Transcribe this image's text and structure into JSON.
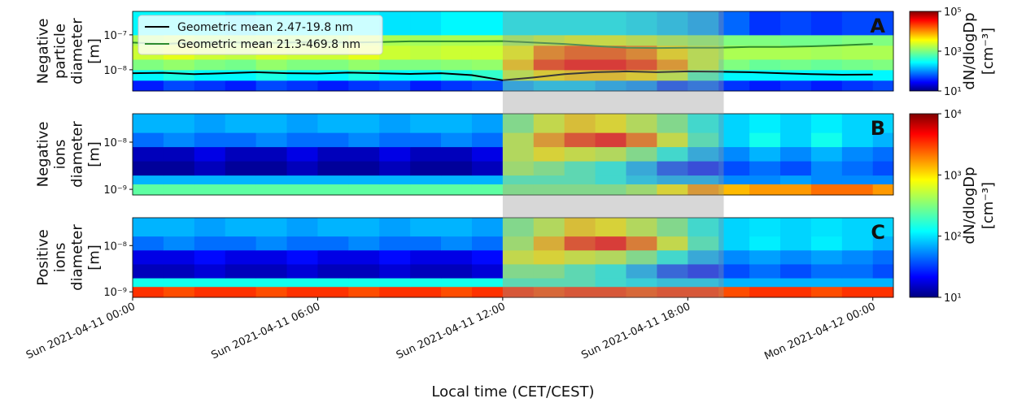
{
  "shaded_span": [
    "2021-04-11 12:00",
    "2021-04-11 19:10"
  ],
  "chart_data": [
    {
      "type": "heatmap",
      "panel_label": "A",
      "ylabel": [
        "Negative",
        "particle",
        "diameter",
        "[m]"
      ],
      "ylog": true,
      "ylim": [
        2.47e-09,
        4.698e-07
      ],
      "yticks": [
        {
          "value": 1e-08,
          "label": "10⁻⁸"
        },
        {
          "value": 1e-07,
          "label": "10⁻⁷"
        }
      ],
      "xlim": [
        "2021-04-11 00:00",
        "2021-04-12 00:40"
      ],
      "x": [
        "2021-04-11 00:00",
        "2021-04-11 01:00",
        "2021-04-11 02:00",
        "2021-04-11 03:00",
        "2021-04-11 04:00",
        "2021-04-11 05:00",
        "2021-04-11 06:00",
        "2021-04-11 07:00",
        "2021-04-11 08:00",
        "2021-04-11 09:00",
        "2021-04-11 10:00",
        "2021-04-11 11:00",
        "2021-04-11 12:00",
        "2021-04-11 13:00",
        "2021-04-11 14:00",
        "2021-04-11 15:00",
        "2021-04-11 16:00",
        "2021-04-11 17:00",
        "2021-04-11 18:00",
        "2021-04-11 19:00",
        "2021-04-11 20:00",
        "2021-04-11 21:00",
        "2021-04-11 22:00",
        "2021-04-11 23:00",
        "2021-04-12 00:00"
      ],
      "y_bins": [
        2.47e-09,
        5e-09,
        1e-08,
        2e-08,
        5e-08,
        1e-07,
        4.698e-07
      ],
      "z": [
        [
          40,
          60,
          50,
          40,
          60,
          50,
          40,
          50,
          60,
          40,
          50,
          60,
          150,
          200,
          200,
          150,
          120,
          60,
          80,
          50,
          40,
          50,
          40,
          50,
          60
        ],
        [
          300,
          400,
          300,
          300,
          400,
          300,
          300,
          400,
          300,
          300,
          400,
          500,
          2000,
          4000,
          5000,
          5000,
          4000,
          2000,
          600,
          300,
          300,
          300,
          300,
          300,
          300
        ],
        [
          1000,
          1200,
          1000,
          900,
          1200,
          1000,
          1000,
          1200,
          1000,
          1000,
          1100,
          1200,
          5000,
          20000,
          30000,
          30000,
          20000,
          8000,
          2000,
          1000,
          800,
          900,
          800,
          900,
          1000
        ],
        [
          2000,
          2500,
          2000,
          1800,
          2200,
          2000,
          2000,
          2500,
          2000,
          1800,
          2000,
          2000,
          3000,
          10000,
          15000,
          15000,
          10000,
          4000,
          2000,
          1500,
          1500,
          1500,
          1400,
          1500,
          1500
        ],
        [
          1500,
          1800,
          1500,
          1500,
          1600,
          1500,
          1500,
          2000,
          1500,
          1400,
          1500,
          1500,
          1500,
          2000,
          2500,
          2500,
          2000,
          1500,
          1200,
          1000,
          1000,
          900,
          900,
          1000,
          1000
        ],
        [
          300,
          300,
          300,
          250,
          300,
          300,
          300,
          300,
          250,
          250,
          300,
          300,
          300,
          300,
          300,
          300,
          250,
          200,
          150,
          80,
          50,
          60,
          50,
          60,
          60
        ]
      ],
      "series": [
        {
          "name": "Geometric mean 2.47-19.8 nm",
          "color": "#000000",
          "values": [
            8e-09,
            8.2e-09,
            7.5e-09,
            8e-09,
            8.5e-09,
            8e-09,
            7.8e-09,
            8.3e-09,
            8e-09,
            7.6e-09,
            8e-09,
            7e-09,
            5e-09,
            6e-09,
            7.5e-09,
            8.5e-09,
            9e-09,
            8.5e-09,
            9e-09,
            8.8e-09,
            8.5e-09,
            8e-09,
            7.5e-09,
            7.2e-09,
            7.3e-09
          ]
        },
        {
          "name": "Geometric mean 21.3-469.8 nm",
          "color": "#2e8b2e",
          "values": [
            6e-08,
            5.5e-08,
            6e-08,
            6.2e-08,
            5.8e-08,
            6e-08,
            6.3e-08,
            6e-08,
            6.2e-08,
            6.5e-08,
            6.5e-08,
            6.5e-08,
            6.6e-08,
            6e-08,
            5.5e-08,
            4.8e-08,
            4.3e-08,
            4.2e-08,
            4.3e-08,
            4.3e-08,
            4.5e-08,
            4.5e-08,
            4.7e-08,
            5e-08,
            5.5e-08
          ]
        }
      ],
      "legend": "upper left",
      "colorbar": {
        "label": "dN/dlogDp",
        "unit": "[cm⁻³]",
        "log": true,
        "colormap": "jet",
        "lim": [
          10,
          100000
        ],
        "ticks": [
          {
            "value": 10,
            "label": "10¹"
          },
          {
            "value": 1000,
            "label": "10³"
          },
          {
            "value": 100000,
            "label": "10⁵"
          }
        ]
      }
    },
    {
      "type": "heatmap",
      "panel_label": "B",
      "ylabel": [
        "Negative",
        "ions",
        "diameter",
        "[m]"
      ],
      "ylog": true,
      "ylim": [
        7.6e-10,
        4e-08
      ],
      "yticks": [
        {
          "value": 1e-09,
          "label": "10⁻⁹"
        },
        {
          "value": 1e-08,
          "label": "10⁻⁸"
        }
      ],
      "xlim": [
        "2021-04-11 00:00",
        "2021-04-12 00:40"
      ],
      "x": [
        "2021-04-11 00:00",
        "2021-04-11 01:00",
        "2021-04-11 02:00",
        "2021-04-11 03:00",
        "2021-04-11 04:00",
        "2021-04-11 05:00",
        "2021-04-11 06:00",
        "2021-04-11 07:00",
        "2021-04-11 08:00",
        "2021-04-11 09:00",
        "2021-04-11 10:00",
        "2021-04-11 11:00",
        "2021-04-11 12:00",
        "2021-04-11 13:00",
        "2021-04-11 14:00",
        "2021-04-11 15:00",
        "2021-04-11 16:00",
        "2021-04-11 17:00",
        "2021-04-11 18:00",
        "2021-04-11 19:00",
        "2021-04-11 20:00",
        "2021-04-11 21:00",
        "2021-04-11 22:00",
        "2021-04-11 23:00",
        "2021-04-12 00:00"
      ],
      "y_bins": [
        7.6e-10,
        1.3e-09,
        2e-09,
        4e-09,
        8e-09,
        1.6e-08,
        4e-08
      ],
      "z": [
        [
          250,
          250,
          250,
          250,
          250,
          250,
          250,
          250,
          250,
          250,
          250,
          250,
          300,
          300,
          300,
          300,
          400,
          800,
          1500,
          1200,
          1500,
          1500,
          2000,
          2000,
          1500
        ],
        [
          80,
          80,
          80,
          80,
          80,
          80,
          80,
          80,
          80,
          80,
          80,
          80,
          200,
          200,
          200,
          150,
          100,
          80,
          80,
          60,
          60,
          70,
          60,
          60,
          60
        ],
        [
          12,
          12,
          15,
          12,
          12,
          15,
          12,
          12,
          15,
          12,
          12,
          15,
          400,
          300,
          200,
          150,
          80,
          40,
          30,
          40,
          50,
          40,
          60,
          50,
          40
        ],
        [
          15,
          15,
          20,
          15,
          15,
          20,
          15,
          15,
          20,
          15,
          15,
          20,
          500,
          800,
          600,
          500,
          300,
          150,
          80,
          60,
          80,
          60,
          80,
          60,
          50
        ],
        [
          50,
          60,
          50,
          50,
          60,
          50,
          50,
          60,
          50,
          50,
          60,
          50,
          500,
          1500,
          3000,
          4000,
          2000,
          600,
          200,
          100,
          150,
          100,
          150,
          100,
          80
        ],
        [
          80,
          80,
          70,
          80,
          80,
          70,
          80,
          80,
          70,
          80,
          80,
          70,
          300,
          600,
          1000,
          800,
          500,
          300,
          150,
          100,
          120,
          100,
          120,
          100,
          100
        ]
      ],
      "colorbar": {
        "label": "dN/dlogDp",
        "unit": "[cm⁻³]",
        "log": true,
        "colormap": "jet",
        "lim": [
          10,
          10000
        ],
        "ticks": [
          {
            "value": 10,
            "label": "10¹"
          },
          {
            "value": 100,
            "label": "10²"
          },
          {
            "value": 1000,
            "label": "10³"
          },
          {
            "value": 10000,
            "label": "10⁴"
          }
        ]
      }
    },
    {
      "type": "heatmap",
      "panel_label": "C",
      "ylabel": [
        "Positive",
        "ions",
        "diameter",
        "[m]"
      ],
      "ylog": true,
      "ylim": [
        7.6e-10,
        4e-08
      ],
      "yticks": [
        {
          "value": 1e-09,
          "label": "10⁻⁹"
        },
        {
          "value": 1e-08,
          "label": "10⁻⁸"
        }
      ],
      "xlim": [
        "2021-04-11 00:00",
        "2021-04-12 00:40"
      ],
      "xticks": [
        {
          "value": "2021-04-11 00:00",
          "label": "Sun 2021-04-11 00:00"
        },
        {
          "value": "2021-04-11 06:00",
          "label": "Sun 2021-04-11 06:00"
        },
        {
          "value": "2021-04-11 12:00",
          "label": "Sun 2021-04-11 12:00"
        },
        {
          "value": "2021-04-11 18:00",
          "label": "Sun 2021-04-11 18:00"
        },
        {
          "value": "2021-04-12 00:00",
          "label": "Mon 2021-04-12 00:00"
        }
      ],
      "xlabel": "Local time (CET/CEST)",
      "x": [
        "2021-04-11 00:00",
        "2021-04-11 01:00",
        "2021-04-11 02:00",
        "2021-04-11 03:00",
        "2021-04-11 04:00",
        "2021-04-11 05:00",
        "2021-04-11 06:00",
        "2021-04-11 07:00",
        "2021-04-11 08:00",
        "2021-04-11 09:00",
        "2021-04-11 10:00",
        "2021-04-11 11:00",
        "2021-04-11 12:00",
        "2021-04-11 13:00",
        "2021-04-11 14:00",
        "2021-04-11 15:00",
        "2021-04-11 16:00",
        "2021-04-11 17:00",
        "2021-04-11 18:00",
        "2021-04-11 19:00",
        "2021-04-11 20:00",
        "2021-04-11 21:00",
        "2021-04-11 22:00",
        "2021-04-11 23:00",
        "2021-04-12 00:00"
      ],
      "y_bins": [
        7.6e-10,
        1.3e-09,
        2e-09,
        4e-09,
        8e-09,
        1.6e-08,
        4e-08
      ],
      "z": [
        [
          3000,
          2500,
          3000,
          3000,
          2500,
          3000,
          3000,
          2500,
          3000,
          3000,
          2500,
          3000,
          3000,
          2500,
          3000,
          3000,
          2500,
          3000,
          3000,
          2500,
          3000,
          3000,
          2500,
          3000,
          3000
        ],
        [
          150,
          150,
          150,
          150,
          150,
          150,
          150,
          150,
          150,
          150,
          150,
          150,
          200,
          200,
          200,
          150,
          120,
          100,
          100,
          80,
          80,
          80,
          80,
          80,
          80
        ],
        [
          15,
          15,
          18,
          15,
          15,
          18,
          15,
          15,
          18,
          15,
          15,
          18,
          300,
          300,
          200,
          150,
          80,
          40,
          30,
          40,
          50,
          40,
          50,
          50,
          40
        ],
        [
          20,
          20,
          25,
          20,
          20,
          25,
          20,
          20,
          25,
          20,
          20,
          25,
          600,
          800,
          600,
          500,
          300,
          150,
          80,
          60,
          70,
          60,
          70,
          60,
          50
        ],
        [
          50,
          60,
          50,
          50,
          60,
          50,
          50,
          60,
          50,
          50,
          60,
          50,
          400,
          1200,
          3000,
          4000,
          2000,
          600,
          200,
          100,
          120,
          100,
          120,
          100,
          80
        ],
        [
          80,
          80,
          70,
          80,
          80,
          70,
          80,
          80,
          70,
          80,
          80,
          70,
          300,
          500,
          1000,
          800,
          500,
          300,
          150,
          100,
          110,
          100,
          110,
          100,
          100
        ]
      ]
    }
  ]
}
